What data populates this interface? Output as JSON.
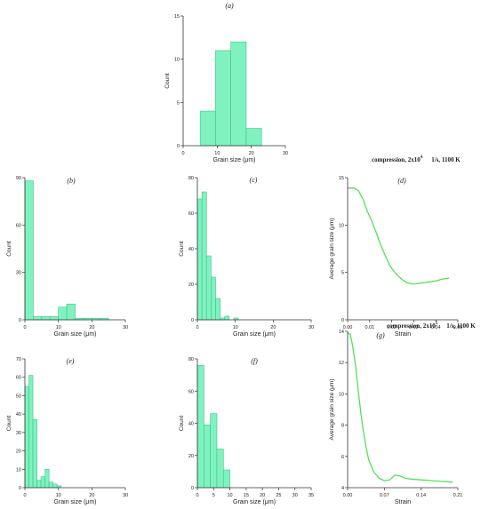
{
  "colors": {
    "bar_fill": "#7ff2c0",
    "bar_stroke": "#3cc488",
    "line": "#55e05a",
    "axis": "#333333",
    "text": "#222222"
  },
  "annotations": {
    "d_condition": {
      "prefix": "compression, 2x10",
      "exp": "4",
      "suffix": "1/s, 1100 K"
    },
    "g_condition": {
      "prefix": "compression, 2x10",
      "exp": "5",
      "suffix": "1/s, 1100 K"
    }
  },
  "chart_data": [
    {
      "id": "a",
      "panel_label": "(a)",
      "type": "bar",
      "xlabel": "Grain size (μm)",
      "ylabel": "Count",
      "xlim": [
        0,
        30
      ],
      "ylim": [
        0,
        15
      ],
      "xticks": [
        0,
        10,
        20,
        30
      ],
      "yticks": [
        0,
        5,
        10,
        15
      ],
      "bins": [
        [
          5,
          9.5,
          4
        ],
        [
          9.5,
          14,
          11
        ],
        [
          14,
          18.5,
          12
        ],
        [
          18.5,
          23,
          2
        ]
      ]
    },
    {
      "id": "b",
      "panel_label": "(b)",
      "type": "bar",
      "xlabel": "Grain size (μm)",
      "ylabel": "Count",
      "xlim": [
        0,
        30
      ],
      "ylim": [
        0,
        90
      ],
      "xticks": [
        0,
        10,
        20,
        30
      ],
      "yticks": [
        0,
        30,
        60,
        90
      ],
      "bins": [
        [
          0,
          2.5,
          88
        ],
        [
          2.5,
          5,
          2
        ],
        [
          5,
          7.5,
          2
        ],
        [
          7.5,
          10,
          2
        ],
        [
          10,
          12.5,
          8
        ],
        [
          12.5,
          15,
          10
        ],
        [
          15,
          17.5,
          1
        ],
        [
          17.5,
          20,
          1
        ],
        [
          20,
          22.5,
          1
        ],
        [
          22.5,
          25,
          1
        ]
      ]
    },
    {
      "id": "c",
      "panel_label": "(c)",
      "type": "bar",
      "xlabel": "Grain size (μm)",
      "ylabel": "Count",
      "xlim": [
        0,
        30
      ],
      "ylim": [
        0,
        80
      ],
      "xticks": [
        0,
        10,
        20,
        30
      ],
      "yticks": [
        0,
        20,
        40,
        60,
        80
      ],
      "bins": [
        [
          0,
          1.2,
          68
        ],
        [
          1.2,
          2.4,
          72
        ],
        [
          2.4,
          3.6,
          36
        ],
        [
          3.6,
          4.8,
          24
        ],
        [
          4.8,
          6,
          12
        ],
        [
          6,
          7.2,
          1
        ],
        [
          7.2,
          8.4,
          2
        ],
        [
          8.4,
          9.6,
          0
        ],
        [
          9.6,
          10.8,
          1
        ]
      ]
    },
    {
      "id": "d",
      "panel_label": "(d)",
      "type": "line",
      "xlabel": "Strain",
      "ylabel": "Average grain size (μm)",
      "xlim": [
        0,
        0.05
      ],
      "ylim": [
        0,
        15
      ],
      "xticks": [
        "0.00",
        "0.01",
        "0.02",
        "0.03",
        "0.04",
        "0.05"
      ],
      "yticks": [
        0,
        5,
        10,
        15
      ],
      "x": [
        0,
        0.003,
        0.005,
        0.007,
        0.009,
        0.011,
        0.013,
        0.015,
        0.017,
        0.019,
        0.021,
        0.023,
        0.025,
        0.027,
        0.029,
        0.031,
        0.034,
        0.037,
        0.04,
        0.043,
        0.046
      ],
      "y": [
        13.9,
        13.9,
        13.6,
        12.7,
        11.4,
        10.4,
        9.2,
        7.9,
        6.8,
        5.8,
        5.1,
        4.6,
        4.2,
        3.9,
        3.8,
        3.8,
        3.9,
        4.0,
        4.1,
        4.3,
        4.4
      ]
    },
    {
      "id": "e",
      "panel_label": "(e)",
      "type": "bar",
      "xlabel": "Grain size (μm)",
      "ylabel": "Count",
      "xlim": [
        0,
        30
      ],
      "ylim": [
        0,
        70
      ],
      "xticks": [
        0,
        10,
        20,
        30
      ],
      "yticks": [
        0,
        10,
        20,
        30,
        40,
        50,
        60,
        70
      ],
      "bins": [
        [
          0,
          1.2,
          55
        ],
        [
          1.2,
          2.4,
          61
        ],
        [
          2.4,
          3.6,
          37
        ],
        [
          3.6,
          4.8,
          4
        ],
        [
          4.8,
          6,
          6
        ],
        [
          6,
          7.2,
          10
        ],
        [
          7.2,
          8.4,
          3
        ],
        [
          8.4,
          9.6,
          2
        ],
        [
          9.6,
          10.8,
          1
        ]
      ]
    },
    {
      "id": "f",
      "panel_label": "(f)",
      "type": "bar",
      "xlabel": "Grain size (μm)",
      "ylabel": "Count",
      "xlim": [
        0,
        35
      ],
      "ylim": [
        0,
        80
      ],
      "xticks": [
        0,
        5,
        10,
        15,
        20,
        25,
        30,
        35
      ],
      "yticks": [
        0,
        20,
        40,
        60,
        80
      ],
      "bins": [
        [
          0,
          2,
          76
        ],
        [
          2,
          4,
          39
        ],
        [
          4,
          6,
          46
        ],
        [
          6,
          8,
          24
        ],
        [
          8,
          10,
          11
        ]
      ]
    },
    {
      "id": "g",
      "panel_label": "(g)",
      "type": "line",
      "xlabel": "Strain",
      "ylabel": "Average grain size (μm)",
      "xlim": [
        0,
        0.21
      ],
      "ylim": [
        4,
        14
      ],
      "xticks": [
        "0.00",
        "0.07",
        "0.14",
        "0.21"
      ],
      "yticks": [
        4,
        6,
        8,
        10,
        12,
        14
      ],
      "x": [
        0,
        0.005,
        0.01,
        0.015,
        0.02,
        0.025,
        0.03,
        0.035,
        0.04,
        0.05,
        0.06,
        0.07,
        0.08,
        0.09,
        0.1,
        0.11,
        0.12,
        0.14,
        0.16,
        0.18,
        0.2
      ],
      "y": [
        13.9,
        13.8,
        13.0,
        11.8,
        10.3,
        8.8,
        7.6,
        6.6,
        5.8,
        5.0,
        4.6,
        4.45,
        4.5,
        4.8,
        4.75,
        4.6,
        4.55,
        4.5,
        4.45,
        4.4,
        4.35
      ]
    }
  ]
}
